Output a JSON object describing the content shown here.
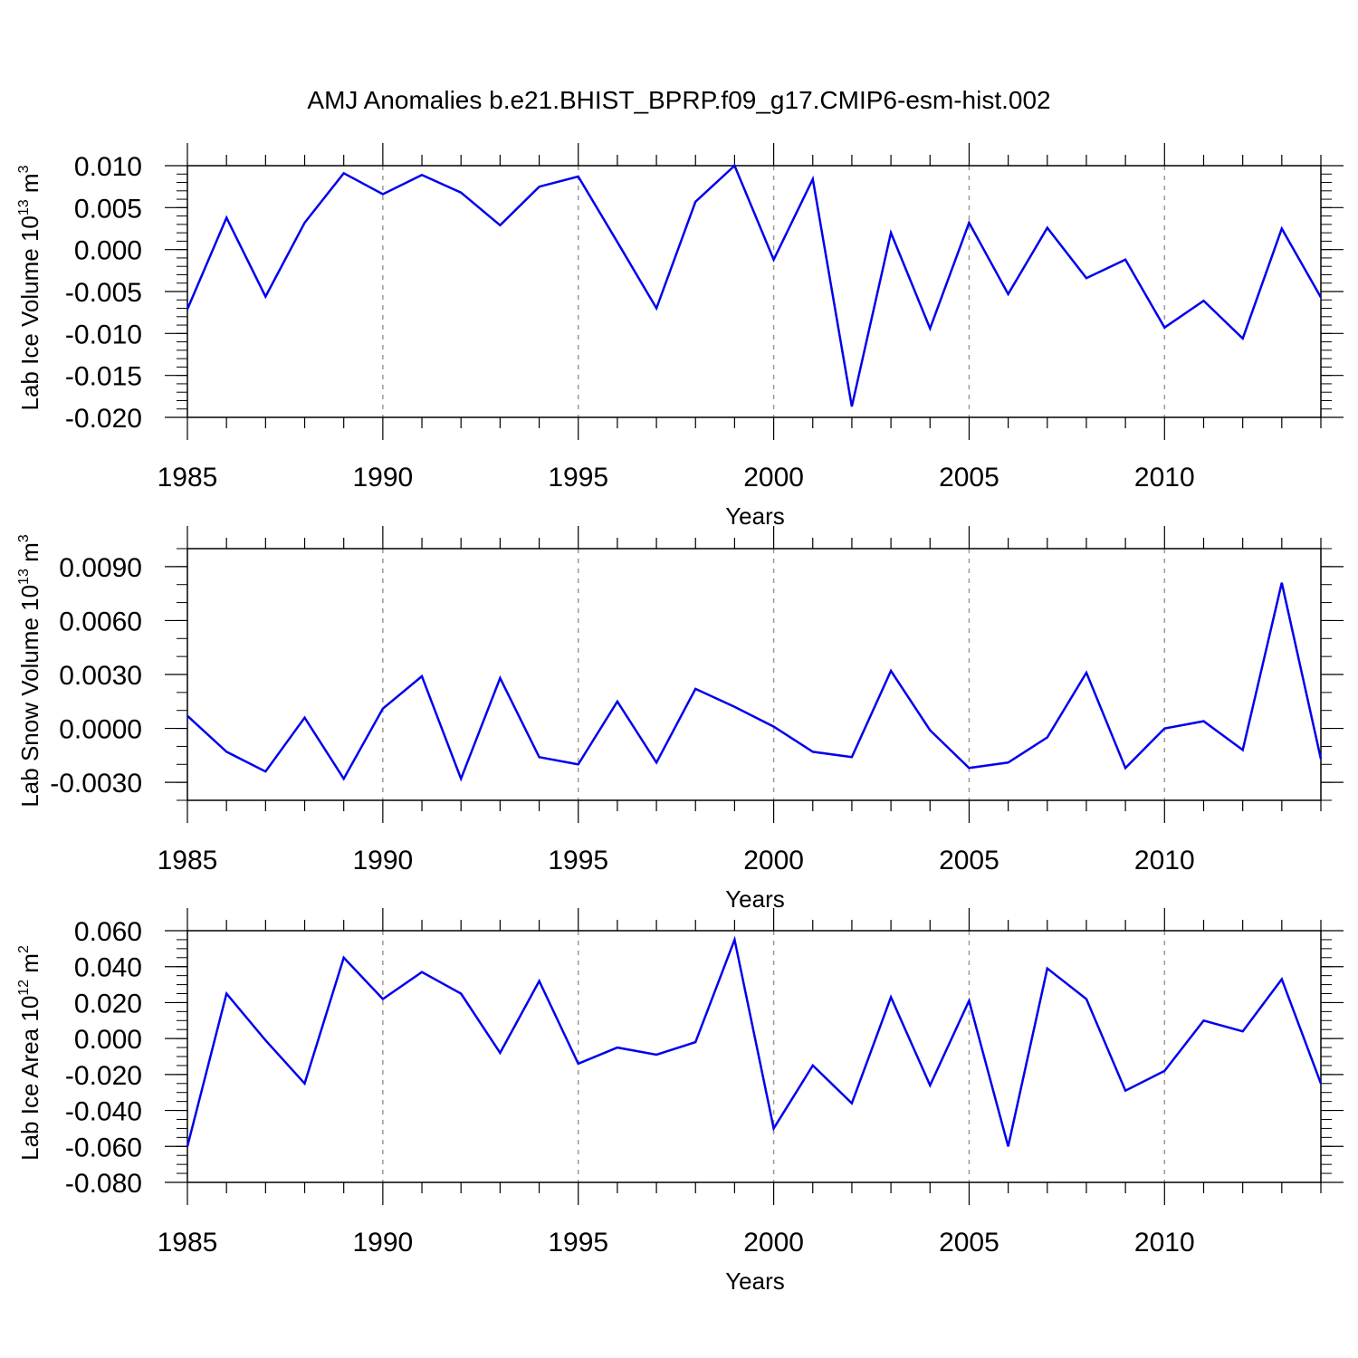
{
  "title": "AMJ Anomalies b.e21.BHIST_BPRP.f09_g17.CMIP6-esm-hist.002",
  "colors": {
    "line": "#0000ee",
    "frame": "#000000",
    "grid": "#9a9a9a"
  },
  "chart_data": [
    {
      "type": "line",
      "xlabel": "Years",
      "ylabel": {
        "main": "Lab Ice Volume 10",
        "sup": "13",
        "unit": " m",
        "unit_sup": "3"
      },
      "xlim": [
        1985,
        2014
      ],
      "ylim": [
        -0.02,
        0.01
      ],
      "ticks": [
        "0.010",
        "0.005",
        "0.000",
        "-0.005",
        "-0.010",
        "-0.015",
        "-0.020"
      ],
      "tick_values": [
        0.01,
        0.005,
        0.0,
        -0.005,
        -0.01,
        -0.015,
        -0.02
      ],
      "minor_step": 0.001,
      "xticks": [
        "1985",
        "1990",
        "1995",
        "2000",
        "2005",
        "2010"
      ],
      "grid_years": [
        1990,
        1995,
        2000,
        2005,
        2010
      ],
      "x": [
        1985,
        1986,
        1987,
        1988,
        1989,
        1990,
        1991,
        1992,
        1993,
        1994,
        1995,
        1996,
        1997,
        1998,
        1999,
        2000,
        2001,
        2002,
        2003,
        2004,
        2005,
        2006,
        2007,
        2008,
        2009,
        2010,
        2011,
        2012,
        2013,
        2014
      ],
      "values": [
        -0.0071,
        0.0038,
        -0.0056,
        0.0032,
        0.0091,
        0.0066,
        0.0089,
        0.0068,
        0.0029,
        0.0075,
        0.0087,
        0.0009,
        -0.007,
        0.0057,
        0.01,
        -0.0012,
        0.0084,
        -0.0187,
        0.002,
        -0.0094,
        0.0032,
        -0.0053,
        0.0026,
        -0.0034,
        -0.0012,
        -0.0093,
        -0.0061,
        -0.0106,
        0.0025,
        -0.0057
      ]
    },
    {
      "type": "line",
      "xlabel": "Years",
      "ylabel": {
        "main": "Lab Snow Volume 10",
        "sup": "13",
        "unit": " m",
        "unit_sup": "3"
      },
      "xlim": [
        1985,
        2014
      ],
      "ylim": [
        -0.004,
        0.01
      ],
      "ticks": [
        "0.0090",
        "0.0060",
        "0.0030",
        "0.0000",
        "-0.0030"
      ],
      "tick_values": [
        0.009,
        0.006,
        0.003,
        0.0,
        -0.003
      ],
      "minor_step": 0.001,
      "xticks": [
        "1985",
        "1990",
        "1995",
        "2000",
        "2005",
        "2010"
      ],
      "grid_years": [
        1990,
        1995,
        2000,
        2005,
        2010
      ],
      "x": [
        1985,
        1986,
        1987,
        1988,
        1989,
        1990,
        1991,
        1992,
        1993,
        1994,
        1995,
        1996,
        1997,
        1998,
        1999,
        2000,
        2001,
        2002,
        2003,
        2004,
        2005,
        2006,
        2007,
        2008,
        2009,
        2010,
        2011,
        2012,
        2013,
        2014
      ],
      "values": [
        0.0007,
        -0.0013,
        -0.0024,
        0.0006,
        -0.0028,
        0.0011,
        0.0029,
        -0.0028,
        0.0028,
        -0.0016,
        -0.002,
        0.0015,
        -0.0019,
        0.0022,
        0.0012,
        0.0001,
        -0.0013,
        -0.0016,
        0.0032,
        -0.0001,
        -0.0022,
        -0.0019,
        -0.0005,
        0.0031,
        -0.0022,
        0.0,
        0.0004,
        -0.0012,
        0.0081,
        -0.0017
      ]
    },
    {
      "type": "line",
      "xlabel": "Years",
      "ylabel": {
        "main": "Lab Ice Area 10",
        "sup": "12",
        "unit": " m",
        "unit_sup": "2"
      },
      "xlim": [
        1985,
        2014
      ],
      "ylim": [
        -0.08,
        0.06
      ],
      "ticks": [
        "0.060",
        "0.040",
        "0.020",
        "0.000",
        "-0.020",
        "-0.040",
        "-0.060",
        "-0.080"
      ],
      "tick_values": [
        0.06,
        0.04,
        0.02,
        0.0,
        -0.02,
        -0.04,
        -0.06,
        -0.08
      ],
      "minor_step": 0.005,
      "xticks": [
        "1985",
        "1990",
        "1995",
        "2000",
        "2005",
        "2010"
      ],
      "grid_years": [
        1990,
        1995,
        2000,
        2005,
        2010
      ],
      "x": [
        1985,
        1986,
        1987,
        1988,
        1989,
        1990,
        1991,
        1992,
        1993,
        1994,
        1995,
        1996,
        1997,
        1998,
        1999,
        2000,
        2001,
        2002,
        2003,
        2004,
        2005,
        2006,
        2007,
        2008,
        2009,
        2010,
        2011,
        2012,
        2013,
        2014
      ],
      "values": [
        -0.06,
        0.025,
        -0.001,
        -0.025,
        0.045,
        0.022,
        0.037,
        0.025,
        -0.008,
        0.032,
        -0.014,
        -0.005,
        -0.009,
        -0.002,
        0.055,
        -0.05,
        -0.015,
        -0.036,
        0.023,
        -0.026,
        0.021,
        -0.06,
        0.039,
        0.022,
        -0.029,
        -0.018,
        0.01,
        0.004,
        0.033,
        -0.025
      ]
    }
  ]
}
